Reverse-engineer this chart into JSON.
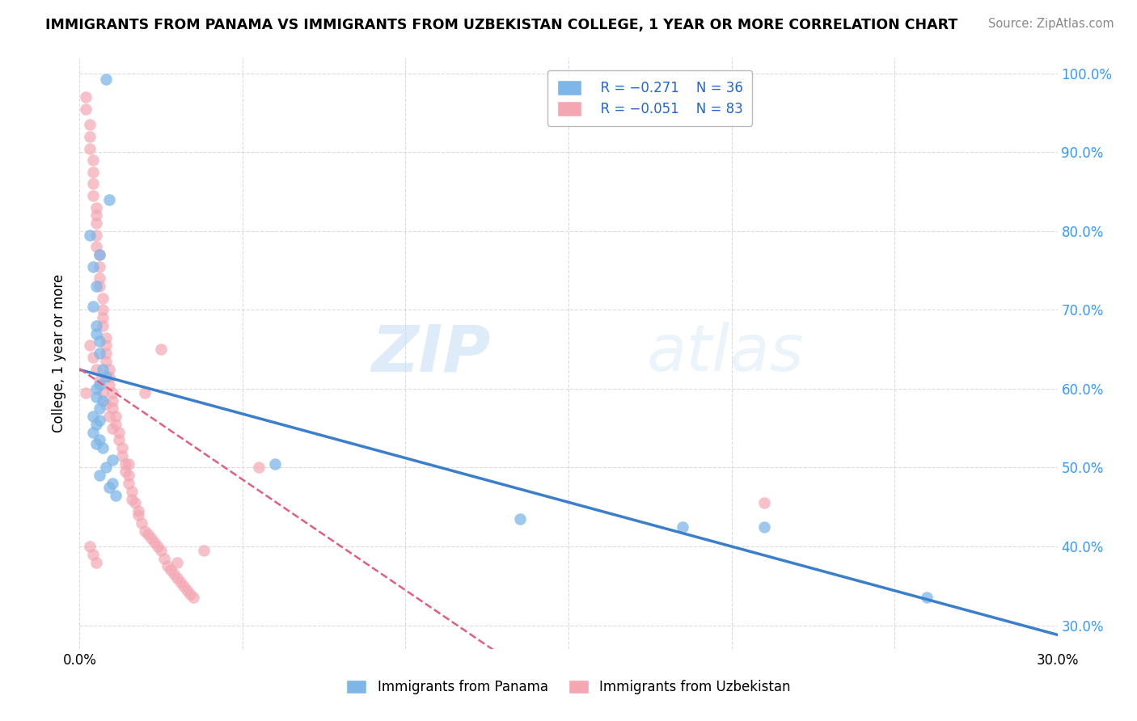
{
  "title": "IMMIGRANTS FROM PANAMA VS IMMIGRANTS FROM UZBEKISTAN COLLEGE, 1 YEAR OR MORE CORRELATION CHART",
  "source": "Source: ZipAtlas.com",
  "ylabel": "College, 1 year or more",
  "xlim": [
    0.0,
    0.3
  ],
  "ylim": [
    0.27,
    1.02
  ],
  "ytick_positions": [
    0.3,
    0.4,
    0.5,
    0.6,
    0.7,
    0.8,
    0.9,
    1.0
  ],
  "yticklabels_right": [
    "30.0%",
    "40.0%",
    "50.0%",
    "60.0%",
    "70.0%",
    "80.0%",
    "90.0%",
    "100.0%"
  ],
  "color_panama": "#7EB6E8",
  "color_uzbekistan": "#F4A7B3",
  "color_panama_line": "#3B7FCC",
  "color_uzbekistan_line": "#E06080",
  "watermark_zip": "ZIP",
  "watermark_atlas": "atlas",
  "legend_r1": "R = −0.271",
  "legend_n1": "N = 36",
  "legend_r2": "R = −0.051",
  "legend_n2": "N = 83",
  "panama_x": [
    0.008,
    0.009,
    0.003,
    0.006,
    0.004,
    0.005,
    0.004,
    0.005,
    0.005,
    0.006,
    0.006,
    0.007,
    0.008,
    0.006,
    0.005,
    0.005,
    0.007,
    0.006,
    0.004,
    0.006,
    0.005,
    0.004,
    0.006,
    0.005,
    0.007,
    0.01,
    0.008,
    0.006,
    0.01,
    0.009,
    0.011,
    0.06,
    0.135,
    0.185,
    0.21,
    0.26
  ],
  "panama_y": [
    0.993,
    0.84,
    0.795,
    0.77,
    0.755,
    0.73,
    0.705,
    0.68,
    0.67,
    0.66,
    0.645,
    0.625,
    0.615,
    0.605,
    0.6,
    0.59,
    0.585,
    0.575,
    0.565,
    0.56,
    0.555,
    0.545,
    0.535,
    0.53,
    0.525,
    0.51,
    0.5,
    0.49,
    0.48,
    0.475,
    0.465,
    0.505,
    0.435,
    0.425,
    0.425,
    0.335
  ],
  "uzbekistan_x": [
    0.002,
    0.002,
    0.003,
    0.003,
    0.003,
    0.004,
    0.004,
    0.004,
    0.004,
    0.005,
    0.005,
    0.005,
    0.005,
    0.005,
    0.006,
    0.006,
    0.006,
    0.006,
    0.007,
    0.007,
    0.007,
    0.007,
    0.008,
    0.008,
    0.008,
    0.008,
    0.009,
    0.009,
    0.009,
    0.01,
    0.01,
    0.01,
    0.011,
    0.011,
    0.012,
    0.012,
    0.013,
    0.013,
    0.014,
    0.014,
    0.015,
    0.015,
    0.016,
    0.016,
    0.017,
    0.018,
    0.018,
    0.019,
    0.02,
    0.021,
    0.022,
    0.023,
    0.024,
    0.025,
    0.026,
    0.027,
    0.028,
    0.029,
    0.03,
    0.031,
    0.032,
    0.033,
    0.034,
    0.035,
    0.002,
    0.003,
    0.004,
    0.005,
    0.006,
    0.007,
    0.008,
    0.009,
    0.01,
    0.015,
    0.02,
    0.025,
    0.03,
    0.038,
    0.055,
    0.21,
    0.003,
    0.004,
    0.005
  ],
  "uzbekistan_y": [
    0.97,
    0.955,
    0.935,
    0.92,
    0.905,
    0.89,
    0.875,
    0.86,
    0.845,
    0.83,
    0.82,
    0.81,
    0.795,
    0.78,
    0.77,
    0.755,
    0.74,
    0.73,
    0.715,
    0.7,
    0.69,
    0.68,
    0.665,
    0.655,
    0.645,
    0.635,
    0.625,
    0.615,
    0.605,
    0.595,
    0.585,
    0.575,
    0.565,
    0.555,
    0.545,
    0.535,
    0.525,
    0.515,
    0.505,
    0.495,
    0.49,
    0.48,
    0.47,
    0.46,
    0.455,
    0.445,
    0.44,
    0.43,
    0.42,
    0.415,
    0.41,
    0.405,
    0.4,
    0.395,
    0.385,
    0.375,
    0.37,
    0.365,
    0.36,
    0.355,
    0.35,
    0.345,
    0.34,
    0.335,
    0.595,
    0.655,
    0.64,
    0.625,
    0.61,
    0.595,
    0.58,
    0.565,
    0.55,
    0.505,
    0.595,
    0.65,
    0.38,
    0.395,
    0.5,
    0.455,
    0.4,
    0.39,
    0.38
  ]
}
